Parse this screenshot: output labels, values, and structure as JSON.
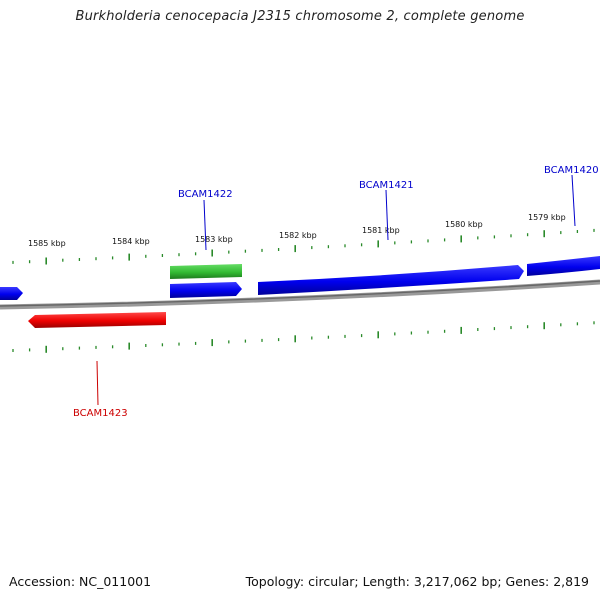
{
  "title": "Burkholderia cenocepacia J2315 chromosome 2, complete genome",
  "footer": {
    "accession": "Accession: NC_011001",
    "summary": "Topology: circular; Length: 3,217,062 bp; Genes: 2,819"
  },
  "colors": {
    "forward_gene": "#0000ee",
    "reverse_gene": "#ee0000",
    "rna_gene": "#33bb33",
    "tick": "#2a8a2a",
    "backbone": "#888888"
  },
  "tick_labels": [
    "1585 kbp",
    "1584 kbp",
    "1583 kbp",
    "1582 kbp",
    "1581 kbp",
    "1580 kbp",
    "1579 kbp"
  ],
  "genes": [
    {
      "label": "BCAM1422",
      "strand": "forward"
    },
    {
      "label": "BCAM1421",
      "strand": "forward"
    },
    {
      "label": "BCAM1420",
      "strand": "forward"
    },
    {
      "label": "BCAM1423",
      "strand": "reverse"
    }
  ]
}
